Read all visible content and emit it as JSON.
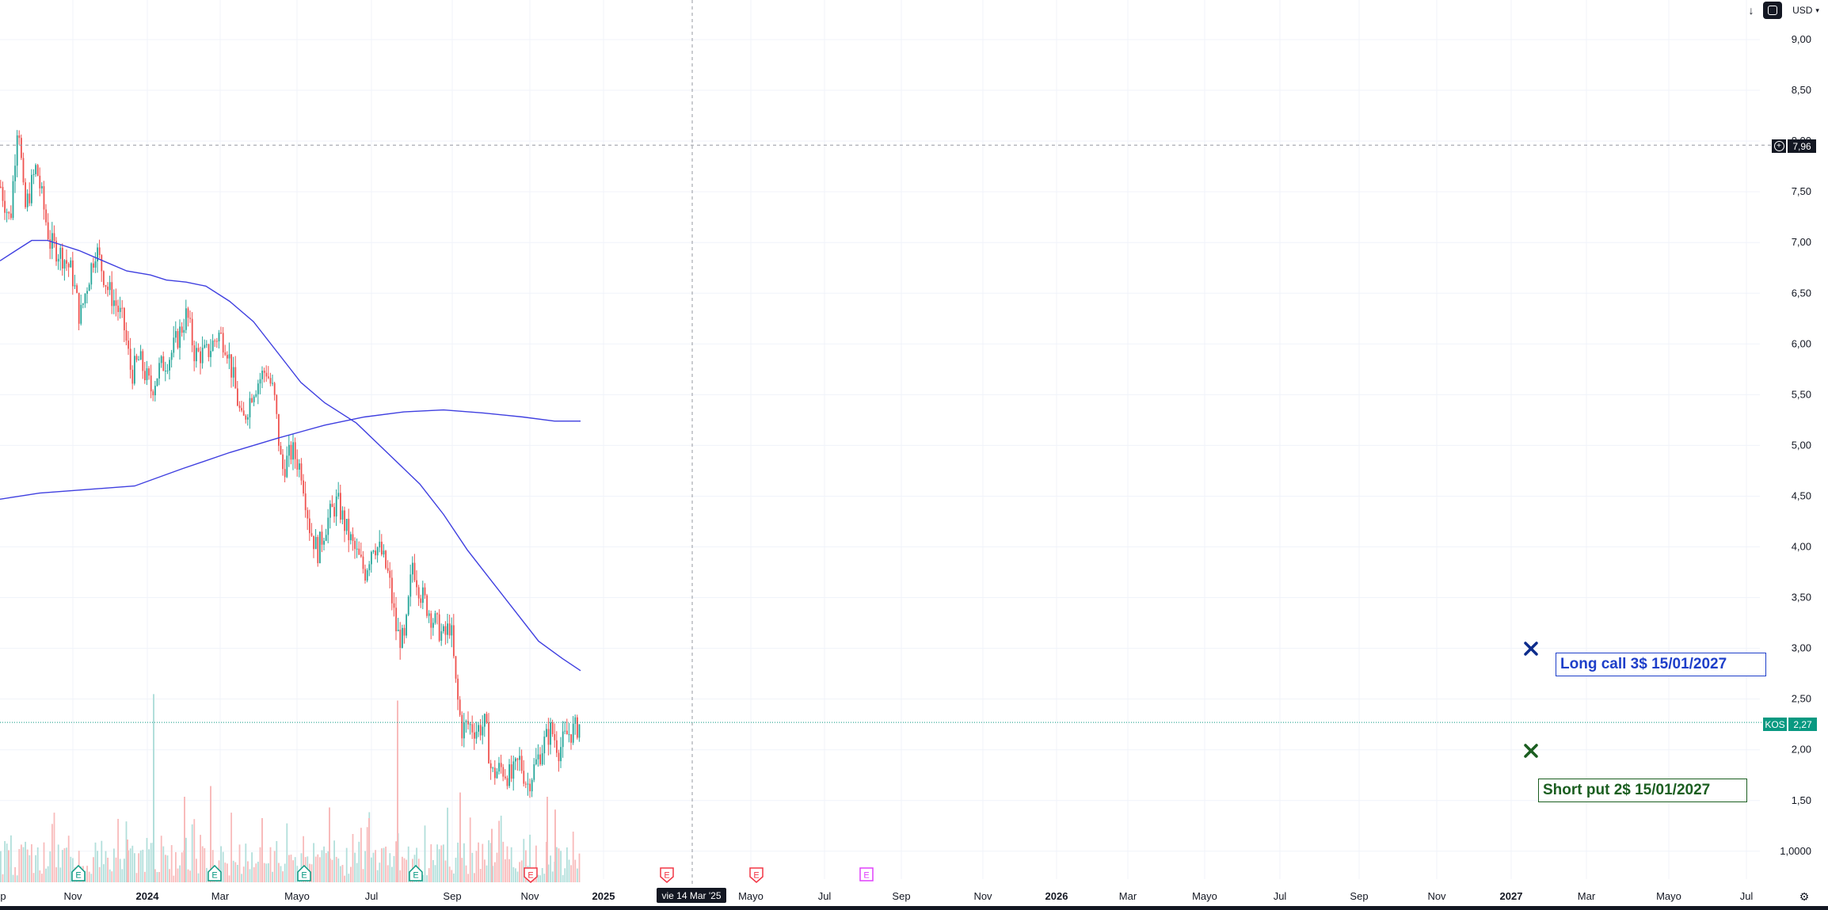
{
  "toolbar": {
    "download_icon": "arrow-down-icon",
    "layout_icon": "rounded-square-icon",
    "currency_label": "USD",
    "currency_icon": "chevron-down-icon"
  },
  "price_axis": {
    "labels": [
      "9,00",
      "8,50",
      "8,00",
      "7,50",
      "7,00",
      "6,50",
      "6,00",
      "5,50",
      "5,00",
      "4,50",
      "4,00",
      "3,50",
      "3,00",
      "2,50",
      "2,00",
      "1,50",
      "1,0000"
    ],
    "crosshair_label": "7,96",
    "crosshair_icon": "plus-circle-icon",
    "last_price_symbol": "KOS",
    "last_price_value": "2,27",
    "settings_icon": "gear-icon"
  },
  "time_axis": {
    "labels": [
      {
        "text": "p",
        "year": false
      },
      {
        "text": "Nov",
        "year": false
      },
      {
        "text": "2024",
        "year": true
      },
      {
        "text": "Mar",
        "year": false
      },
      {
        "text": "Mayo",
        "year": false
      },
      {
        "text": "Jul",
        "year": false
      },
      {
        "text": "Sep",
        "year": false
      },
      {
        "text": "Nov",
        "year": false
      },
      {
        "text": "2025",
        "year": true
      },
      {
        "text": "Mayo",
        "year": false
      },
      {
        "text": "Jul",
        "year": false
      },
      {
        "text": "Sep",
        "year": false
      },
      {
        "text": "Nov",
        "year": false
      },
      {
        "text": "2026",
        "year": true
      },
      {
        "text": "Mar",
        "year": false
      },
      {
        "text": "Mayo",
        "year": false
      },
      {
        "text": "Jul",
        "year": false
      },
      {
        "text": "Sep",
        "year": false
      },
      {
        "text": "Nov",
        "year": false
      },
      {
        "text": "2027",
        "year": true
      },
      {
        "text": "Mar",
        "year": false
      },
      {
        "text": "Mayo",
        "year": false
      },
      {
        "text": "Jul",
        "year": false
      }
    ],
    "crosshair_date": "vie 14 Mar '25"
  },
  "earnings_markers": {
    "letter": "E",
    "colors": {
      "positive": "#089981",
      "negative": "#f23645",
      "upcoming": "#e040fb"
    },
    "types": [
      "positive",
      "positive",
      "positive",
      "positive",
      "negative",
      "negative",
      "negative",
      "upcoming"
    ]
  },
  "annotations": {
    "long_call": {
      "text": "Long call 3$ 15/01/2027",
      "color": "#1e3fc9",
      "marker_color": "#0d2c8c"
    },
    "short_put": {
      "text": "Short put 2$ 15/01/2027",
      "color": "#1b5e20",
      "marker_color": "#1b5e20"
    }
  },
  "chart_data": {
    "type": "candlestick",
    "symbol": "KOS",
    "currency": "USD",
    "ylim": [
      1.0,
      9.0
    ],
    "last_price": 2.27,
    "crosshair_price": 7.96,
    "colors": {
      "up": "#26a69a",
      "down": "#ef5350",
      "ma": "#3f3fe0"
    },
    "price_path": [
      [
        0,
        7.55
      ],
      [
        12,
        7.2
      ],
      [
        22,
        8.28
      ],
      [
        30,
        7.3
      ],
      [
        45,
        7.75
      ],
      [
        62,
        7.0
      ],
      [
        80,
        6.85
      ],
      [
        90,
        6.7
      ],
      [
        100,
        6.25
      ],
      [
        108,
        6.55
      ],
      [
        120,
        6.95
      ],
      [
        135,
        6.55
      ],
      [
        145,
        6.4
      ],
      [
        155,
        6.2
      ],
      [
        165,
        5.7
      ],
      [
        175,
        5.85
      ],
      [
        190,
        5.55
      ],
      [
        200,
        5.75
      ],
      [
        215,
        5.9
      ],
      [
        228,
        6.15
      ],
      [
        235,
        6.3
      ],
      [
        245,
        5.9
      ],
      [
        260,
        5.9
      ],
      [
        275,
        6.1
      ],
      [
        285,
        6.0
      ],
      [
        295,
        5.6
      ],
      [
        305,
        5.2
      ],
      [
        318,
        5.55
      ],
      [
        335,
        5.75
      ],
      [
        345,
        5.5
      ],
      [
        355,
        4.75
      ],
      [
        368,
        4.95
      ],
      [
        380,
        4.75
      ],
      [
        390,
        4.2
      ],
      [
        400,
        3.95
      ],
      [
        412,
        4.25
      ],
      [
        425,
        4.45
      ],
      [
        435,
        4.2
      ],
      [
        445,
        4.0
      ],
      [
        460,
        3.75
      ],
      [
        470,
        4.05
      ],
      [
        480,
        3.95
      ],
      [
        490,
        3.7
      ],
      [
        500,
        3.15
      ],
      [
        510,
        3.05
      ],
      [
        520,
        3.85
      ],
      [
        530,
        3.55
      ],
      [
        545,
        3.3
      ],
      [
        560,
        3.1
      ],
      [
        568,
        3.25
      ],
      [
        575,
        2.6
      ],
      [
        582,
        2.2
      ],
      [
        590,
        2.25
      ],
      [
        600,
        2.2
      ],
      [
        612,
        2.25
      ],
      [
        620,
        1.75
      ],
      [
        632,
        1.82
      ],
      [
        645,
        1.72
      ],
      [
        655,
        1.9
      ],
      [
        665,
        1.65
      ],
      [
        675,
        1.85
      ],
      [
        685,
        2.05
      ],
      [
        695,
        2.2
      ],
      [
        705,
        2.0
      ],
      [
        715,
        2.15
      ],
      [
        725,
        2.2
      ],
      [
        733,
        2.27
      ]
    ],
    "ma_fast": [
      [
        0,
        6.82
      ],
      [
        20,
        6.92
      ],
      [
        40,
        7.02
      ],
      [
        60,
        7.02
      ],
      [
        80,
        6.97
      ],
      [
        100,
        6.92
      ],
      [
        130,
        6.82
      ],
      [
        160,
        6.72
      ],
      [
        190,
        6.68
      ],
      [
        210,
        6.63
      ],
      [
        235,
        6.61
      ],
      [
        260,
        6.57
      ],
      [
        290,
        6.42
      ],
      [
        320,
        6.22
      ],
      [
        350,
        5.92
      ],
      [
        380,
        5.62
      ],
      [
        410,
        5.42
      ],
      [
        450,
        5.22
      ],
      [
        490,
        4.92
      ],
      [
        530,
        4.62
      ],
      [
        560,
        4.32
      ],
      [
        590,
        3.97
      ],
      [
        620,
        3.67
      ],
      [
        650,
        3.37
      ],
      [
        680,
        3.07
      ],
      [
        710,
        2.9
      ],
      [
        733,
        2.78
      ]
    ],
    "ma_slow": [
      [
        0,
        4.47
      ],
      [
        50,
        4.53
      ],
      [
        100,
        4.56
      ],
      [
        170,
        4.6
      ],
      [
        230,
        4.77
      ],
      [
        290,
        4.93
      ],
      [
        350,
        5.07
      ],
      [
        410,
        5.2
      ],
      [
        460,
        5.28
      ],
      [
        510,
        5.33
      ],
      [
        560,
        5.35
      ],
      [
        610,
        5.32
      ],
      [
        660,
        5.28
      ],
      [
        700,
        5.24
      ],
      [
        733,
        5.24
      ]
    ],
    "volume_spikes": [
      [
        193,
        0.88
      ],
      [
        232,
        0.4
      ],
      [
        265,
        0.45
      ],
      [
        501,
        0.85
      ],
      [
        465,
        0.3
      ],
      [
        415,
        0.35
      ],
      [
        580,
        0.42
      ],
      [
        700,
        0.34
      ],
      [
        10,
        0.15
      ],
      [
        160,
        0.2
      ],
      [
        330,
        0.3
      ],
      [
        620,
        0.25
      ],
      [
        690,
        0.4
      ]
    ]
  }
}
